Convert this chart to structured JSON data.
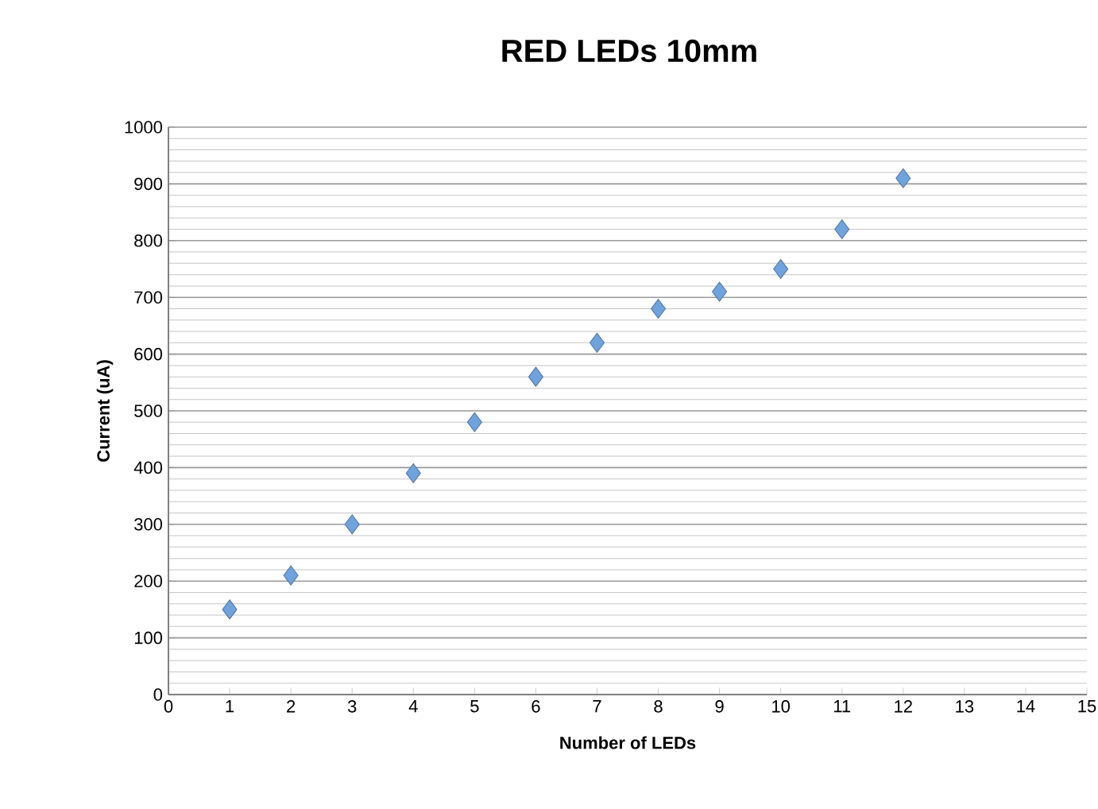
{
  "chart_data": {
    "type": "scatter",
    "title": "RED LEDs 10mm",
    "xlabel": "Number of LEDs",
    "ylabel": "Current (uA)",
    "x": [
      1,
      2,
      3,
      4,
      5,
      6,
      7,
      8,
      9,
      10,
      11,
      12
    ],
    "values": [
      150,
      210,
      300,
      390,
      480,
      560,
      620,
      680,
      710,
      750,
      820,
      910
    ],
    "color": "#6fa3de",
    "marker": "diamond",
    "xlim": [
      0,
      15
    ],
    "xticks": [
      0,
      1,
      2,
      3,
      4,
      5,
      6,
      7,
      8,
      9,
      10,
      11,
      12,
      13,
      14,
      15
    ],
    "ylim": [
      0,
      1000
    ],
    "yticks": [
      0,
      100,
      200,
      300,
      400,
      500,
      600,
      700,
      800,
      900,
      1000
    ],
    "grid": "y"
  }
}
